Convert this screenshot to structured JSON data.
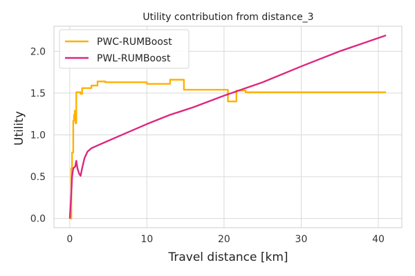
{
  "chart_data": {
    "type": "line",
    "title": "Utility contribution from distance_3",
    "xlabel": "Travel distance [km]",
    "ylabel": "Utility",
    "xlim": [
      -2.05,
      43.05
    ],
    "ylim": [
      -0.11,
      2.3
    ],
    "xticks": [
      0,
      10,
      20,
      30,
      40
    ],
    "yticks": [
      0.0,
      0.5,
      1.0,
      1.5,
      2.0
    ],
    "xtick_labels": [
      "0",
      "10",
      "20",
      "30",
      "40"
    ],
    "ytick_labels": [
      "0.0",
      "0.5",
      "1.0",
      "1.5",
      "2.0"
    ],
    "grid": true,
    "legend_position": "top-left",
    "series": [
      {
        "name": "PWC-RUMBoost",
        "color": "#FFB000",
        "x": [
          0.0,
          0.2,
          0.2,
          0.3,
          0.3,
          0.45,
          0.45,
          0.55,
          0.55,
          0.65,
          0.65,
          0.75,
          0.75,
          0.85,
          0.85,
          1.0,
          1.0,
          1.4,
          1.4,
          1.6,
          1.6,
          2.8,
          2.8,
          3.6,
          3.6,
          4.6,
          4.6,
          10.0,
          10.0,
          13.0,
          13.0,
          14.8,
          14.8,
          20.5,
          20.5,
          21.6,
          21.6,
          22.8,
          22.8,
          41.0
        ],
        "y": [
          0.0,
          0.0,
          0.6,
          0.6,
          0.79,
          0.79,
          1.17,
          1.17,
          1.24,
          1.24,
          1.29,
          1.29,
          1.14,
          1.14,
          1.51,
          1.51,
          1.51,
          1.51,
          1.49,
          1.49,
          1.56,
          1.56,
          1.59,
          1.59,
          1.64,
          1.64,
          1.63,
          1.63,
          1.61,
          1.61,
          1.66,
          1.66,
          1.54,
          1.54,
          1.4,
          1.4,
          1.53,
          1.53,
          1.51,
          1.51
        ]
      },
      {
        "name": "PWL-RUMBoost",
        "color": "#DC267F",
        "x": [
          0.0,
          0.2,
          0.3,
          0.45,
          0.55,
          0.7,
          0.85,
          1.0,
          1.2,
          1.4,
          1.6,
          1.9,
          2.3,
          2.8,
          3.5,
          5.0,
          7.0,
          10.0,
          13.0,
          14.0,
          16.0,
          20.0,
          25.0,
          30.0,
          35.0,
          41.0
        ],
        "y": [
          0.0,
          0.3,
          0.5,
          0.6,
          0.61,
          0.62,
          0.69,
          0.6,
          0.54,
          0.51,
          0.6,
          0.72,
          0.8,
          0.84,
          0.87,
          0.93,
          1.01,
          1.13,
          1.24,
          1.27,
          1.33,
          1.47,
          1.63,
          1.82,
          2.0,
          2.19
        ]
      }
    ]
  }
}
